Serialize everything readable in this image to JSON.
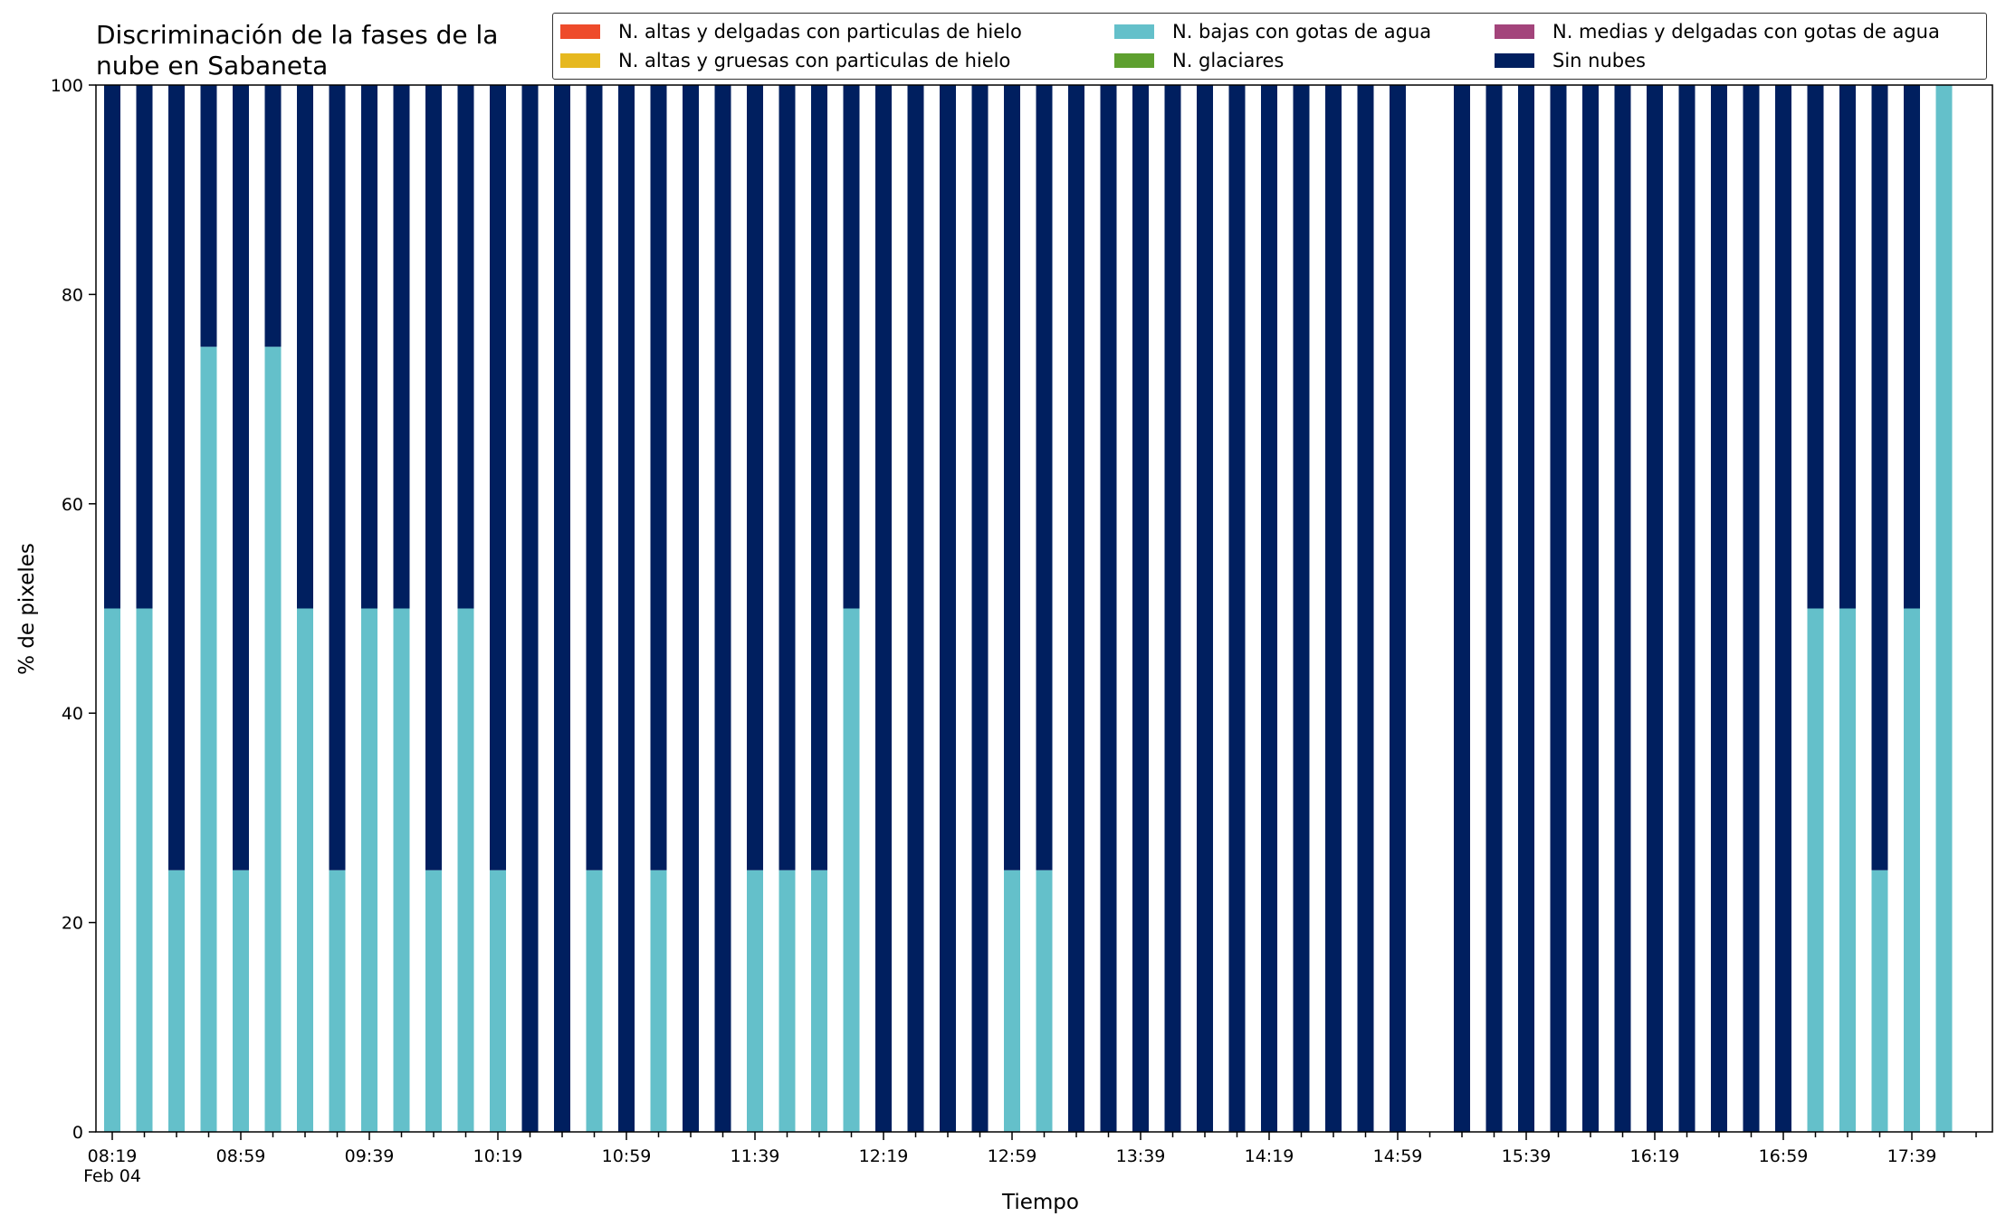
{
  "chart_data": {
    "type": "bar",
    "stacked": true,
    "title": "Discriminación de la fases de la\nnube en Sabaneta",
    "xlabel": "Tiempo",
    "ylabel": "% de pixeles",
    "ylim": [
      0,
      100
    ],
    "yticks": [
      0,
      20,
      40,
      60,
      80,
      100
    ],
    "grid": false,
    "legend_position": "top-right",
    "x_start": "08:19",
    "x_start_date": "Feb 04",
    "x_step_minutes": 10,
    "x_tick_labels": [
      "08:19\nFeb 04",
      "08:59",
      "09:39",
      "10:19",
      "10:59",
      "11:39",
      "12:19",
      "12:59",
      "13:39",
      "14:19",
      "14:59",
      "15:39",
      "16:19",
      "16:59",
      "17:39"
    ],
    "categories": [
      "08:19",
      "08:29",
      "08:39",
      "08:49",
      "08:59",
      "09:09",
      "09:19",
      "09:29",
      "09:39",
      "09:49",
      "09:59",
      "10:09",
      "10:19",
      "10:29",
      "10:39",
      "10:49",
      "10:59",
      "11:09",
      "11:19",
      "11:29",
      "11:39",
      "11:49",
      "11:59",
      "12:09",
      "12:19",
      "12:29",
      "12:39",
      "12:49",
      "12:59",
      "13:09",
      "13:19",
      "13:29",
      "13:39",
      "13:49",
      "13:59",
      "14:09",
      "14:19",
      "14:29",
      "14:39",
      "14:49",
      "14:59",
      "15:09",
      "15:19",
      "15:29",
      "15:39",
      "15:49",
      "15:59",
      "16:09",
      "16:19",
      "16:29",
      "16:39",
      "16:49",
      "16:59",
      "17:09",
      "17:19",
      "17:29",
      "17:39",
      "17:49"
    ],
    "series": [
      {
        "name": "N. altas y delgadas con particulas de hielo",
        "color": "#ee4b2b",
        "values": [
          0,
          0,
          0,
          0,
          0,
          0,
          0,
          0,
          0,
          0,
          0,
          0,
          0,
          0,
          0,
          0,
          0,
          0,
          0,
          0,
          0,
          0,
          0,
          0,
          0,
          0,
          0,
          0,
          0,
          0,
          0,
          0,
          0,
          0,
          0,
          0,
          0,
          0,
          0,
          0,
          0,
          0,
          0,
          0,
          0,
          0,
          0,
          0,
          0,
          0,
          0,
          0,
          0,
          0,
          0,
          0,
          0,
          0
        ]
      },
      {
        "name": "N. altas y gruesas con particulas de hielo",
        "color": "#e6b81f",
        "values": [
          0,
          0,
          0,
          0,
          0,
          0,
          0,
          0,
          0,
          0,
          0,
          0,
          0,
          0,
          0,
          0,
          0,
          0,
          0,
          0,
          0,
          0,
          0,
          0,
          0,
          0,
          0,
          0,
          0,
          0,
          0,
          0,
          0,
          0,
          0,
          0,
          0,
          0,
          0,
          0,
          0,
          0,
          0,
          0,
          0,
          0,
          0,
          0,
          0,
          0,
          0,
          0,
          0,
          0,
          0,
          0,
          0,
          0
        ]
      },
      {
        "name": "N. bajas con gotas de agua",
        "color": "#64c0ca",
        "values": [
          50,
          50,
          25,
          75,
          25,
          75,
          50,
          25,
          50,
          50,
          25,
          50,
          25,
          0,
          0,
          25,
          0,
          25,
          0,
          0,
          25,
          25,
          25,
          50,
          0,
          0,
          0,
          0,
          25,
          25,
          0,
          0,
          0,
          0,
          0,
          0,
          0,
          0,
          0,
          0,
          0,
          0,
          0,
          0,
          0,
          0,
          0,
          0,
          0,
          0,
          0,
          0,
          0,
          50,
          50,
          25,
          50,
          100
        ]
      },
      {
        "name": "N. glaciares",
        "color": "#5ea02f",
        "values": [
          0,
          0,
          0,
          0,
          0,
          0,
          0,
          0,
          0,
          0,
          0,
          0,
          0,
          0,
          0,
          0,
          0,
          0,
          0,
          0,
          0,
          0,
          0,
          0,
          0,
          0,
          0,
          0,
          0,
          0,
          0,
          0,
          0,
          0,
          0,
          0,
          0,
          0,
          0,
          0,
          0,
          0,
          0,
          0,
          0,
          0,
          0,
          0,
          0,
          0,
          0,
          0,
          0,
          0,
          0,
          0,
          0,
          0
        ]
      },
      {
        "name": "N. medias y delgadas con gotas de agua",
        "color": "#a3447b",
        "values": [
          0,
          0,
          0,
          0,
          0,
          0,
          0,
          0,
          0,
          0,
          0,
          0,
          0,
          0,
          0,
          0,
          0,
          0,
          0,
          0,
          0,
          0,
          0,
          0,
          0,
          0,
          0,
          0,
          0,
          0,
          0,
          0,
          0,
          0,
          0,
          0,
          0,
          0,
          0,
          0,
          0,
          0,
          0,
          0,
          0,
          0,
          0,
          0,
          0,
          0,
          0,
          0,
          0,
          0,
          0,
          0,
          0,
          0
        ]
      },
      {
        "name": "Sin nubes",
        "color": "#001f5f",
        "values": [
          50,
          50,
          75,
          25,
          75,
          25,
          50,
          75,
          50,
          50,
          75,
          50,
          75,
          100,
          100,
          75,
          100,
          75,
          100,
          100,
          75,
          75,
          75,
          50,
          100,
          100,
          100,
          100,
          75,
          75,
          100,
          100,
          100,
          100,
          100,
          100,
          100,
          100,
          100,
          100,
          100,
          0,
          100,
          100,
          100,
          100,
          100,
          100,
          100,
          100,
          100,
          100,
          100,
          50,
          50,
          75,
          50,
          0
        ]
      }
    ]
  }
}
